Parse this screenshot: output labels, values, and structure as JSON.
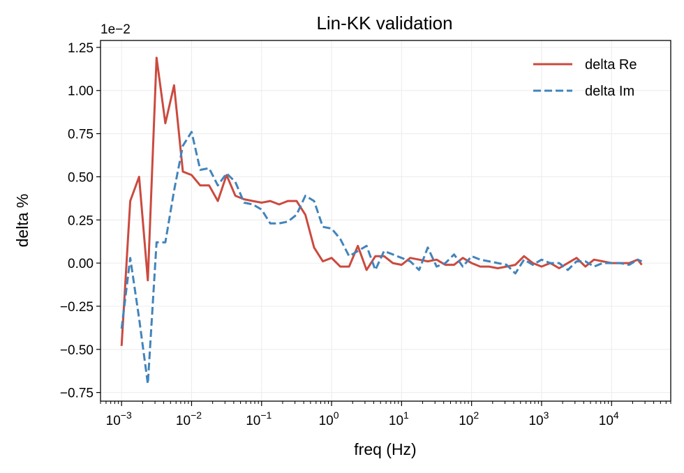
{
  "chart_data": {
    "type": "line",
    "title": "Lin-KK validation",
    "xlabel": "freq (Hz)",
    "ylabel": "delta %",
    "y_multiplier_label": "1e−2",
    "x_scale": "log",
    "xlim": [
      0.0005,
      70000
    ],
    "ylim": [
      -0.8,
      1.29
    ],
    "x_ticks": [
      {
        "value": 0.001,
        "base": "10",
        "exp": "−3"
      },
      {
        "value": 0.01,
        "base": "10",
        "exp": "−2"
      },
      {
        "value": 0.1,
        "base": "10",
        "exp": "−1"
      },
      {
        "value": 1,
        "base": "10",
        "exp": "0"
      },
      {
        "value": 10,
        "base": "10",
        "exp": "1"
      },
      {
        "value": 100,
        "base": "10",
        "exp": "2"
      },
      {
        "value": 1000,
        "base": "10",
        "exp": "3"
      },
      {
        "value": 10000,
        "base": "10",
        "exp": "4"
      }
    ],
    "y_ticks": [
      {
        "value": 1.25,
        "label": "1.25"
      },
      {
        "value": 1.0,
        "label": "1.00"
      },
      {
        "value": 0.75,
        "label": "0.75"
      },
      {
        "value": 0.5,
        "label": "0.50"
      },
      {
        "value": 0.25,
        "label": "0.25"
      },
      {
        "value": 0.0,
        "label": "0.00"
      },
      {
        "value": -0.25,
        "label": "−0.25"
      },
      {
        "value": -0.5,
        "label": "−0.50"
      },
      {
        "value": -0.75,
        "label": "−0.75"
      }
    ],
    "grid": true,
    "legend_position": "top-right",
    "series": [
      {
        "name": "delta Re",
        "color": "#cb4a3f",
        "dash": "solid",
        "points": [
          [
            0.001,
            -0.48
          ],
          [
            0.00133,
            0.36
          ],
          [
            0.00178,
            0.5
          ],
          [
            0.00237,
            -0.1
          ],
          [
            0.00316,
            1.19
          ],
          [
            0.00422,
            0.81
          ],
          [
            0.00562,
            1.03
          ],
          [
            0.0075,
            0.53
          ],
          [
            0.01,
            0.51
          ],
          [
            0.0133,
            0.45
          ],
          [
            0.0178,
            0.45
          ],
          [
            0.0237,
            0.36
          ],
          [
            0.0316,
            0.51
          ],
          [
            0.0422,
            0.39
          ],
          [
            0.0562,
            0.37
          ],
          [
            0.075,
            0.36
          ],
          [
            0.1,
            0.35
          ],
          [
            0.133,
            0.36
          ],
          [
            0.178,
            0.34
          ],
          [
            0.237,
            0.36
          ],
          [
            0.316,
            0.36
          ],
          [
            0.422,
            0.28
          ],
          [
            0.562,
            0.09
          ],
          [
            0.75,
            0.01
          ],
          [
            1.0,
            0.03
          ],
          [
            1.33,
            -0.02
          ],
          [
            1.78,
            -0.02
          ],
          [
            2.37,
            0.1
          ],
          [
            3.16,
            -0.04
          ],
          [
            4.22,
            0.04
          ],
          [
            5.62,
            0.04
          ],
          [
            7.5,
            0.0
          ],
          [
            10,
            -0.01
          ],
          [
            13.3,
            0.03
          ],
          [
            17.8,
            0.02
          ],
          [
            23.7,
            0.01
          ],
          [
            31.6,
            0.02
          ],
          [
            42.2,
            -0.01
          ],
          [
            56.2,
            -0.01
          ],
          [
            75,
            0.03
          ],
          [
            100,
            0.0
          ],
          [
            133,
            -0.02
          ],
          [
            178,
            -0.02
          ],
          [
            237,
            -0.03
          ],
          [
            316,
            -0.02
          ],
          [
            422,
            -0.01
          ],
          [
            562,
            0.04
          ],
          [
            750,
            0.0
          ],
          [
            1000,
            -0.02
          ],
          [
            1330,
            0.0
          ],
          [
            1780,
            -0.03
          ],
          [
            2370,
            0.0
          ],
          [
            3160,
            0.03
          ],
          [
            4220,
            -0.02
          ],
          [
            5620,
            0.02
          ],
          [
            7500,
            0.01
          ],
          [
            10000,
            0.0
          ],
          [
            13300,
            0.0
          ],
          [
            17800,
            0.0
          ],
          [
            23700,
            0.02
          ],
          [
            27000,
            -0.01
          ]
        ]
      },
      {
        "name": "delta Im",
        "color": "#4184bb",
        "dash": "dashed",
        "points": [
          [
            0.001,
            -0.38
          ],
          [
            0.00133,
            0.03
          ],
          [
            0.00178,
            -0.32
          ],
          [
            0.00237,
            -0.7
          ],
          [
            0.00316,
            0.12
          ],
          [
            0.00422,
            0.12
          ],
          [
            0.00562,
            0.42
          ],
          [
            0.0075,
            0.68
          ],
          [
            0.01,
            0.76
          ],
          [
            0.0133,
            0.54
          ],
          [
            0.0178,
            0.55
          ],
          [
            0.0237,
            0.45
          ],
          [
            0.0316,
            0.52
          ],
          [
            0.0422,
            0.47
          ],
          [
            0.0562,
            0.35
          ],
          [
            0.075,
            0.34
          ],
          [
            0.1,
            0.31
          ],
          [
            0.133,
            0.23
          ],
          [
            0.178,
            0.23
          ],
          [
            0.237,
            0.24
          ],
          [
            0.316,
            0.28
          ],
          [
            0.422,
            0.39
          ],
          [
            0.562,
            0.36
          ],
          [
            0.75,
            0.21
          ],
          [
            1.0,
            0.2
          ],
          [
            1.33,
            0.14
          ],
          [
            1.78,
            0.04
          ],
          [
            2.37,
            0.07
          ],
          [
            3.16,
            0.1
          ],
          [
            4.22,
            -0.04
          ],
          [
            5.62,
            0.07
          ],
          [
            7.5,
            0.05
          ],
          [
            10,
            0.03
          ],
          [
            13.3,
            0.01
          ],
          [
            17.8,
            -0.04
          ],
          [
            23.7,
            0.09
          ],
          [
            31.6,
            -0.02
          ],
          [
            42.2,
            0.0
          ],
          [
            56.2,
            0.05
          ],
          [
            75,
            -0.02
          ],
          [
            100,
            0.04
          ],
          [
            133,
            0.02
          ],
          [
            178,
            0.01
          ],
          [
            237,
            0.0
          ],
          [
            316,
            -0.01
          ],
          [
            422,
            -0.06
          ],
          [
            562,
            0.02
          ],
          [
            750,
            -0.01
          ],
          [
            1000,
            0.02
          ],
          [
            1330,
            0.0
          ],
          [
            1780,
            0.0
          ],
          [
            2370,
            -0.04
          ],
          [
            3160,
            0.01
          ],
          [
            4220,
            0.01
          ],
          [
            5620,
            -0.02
          ],
          [
            7500,
            0.0
          ],
          [
            10000,
            0.0
          ],
          [
            13300,
            0.0
          ],
          [
            17800,
            -0.01
          ],
          [
            23700,
            0.02
          ],
          [
            27000,
            0.01
          ]
        ]
      }
    ]
  }
}
